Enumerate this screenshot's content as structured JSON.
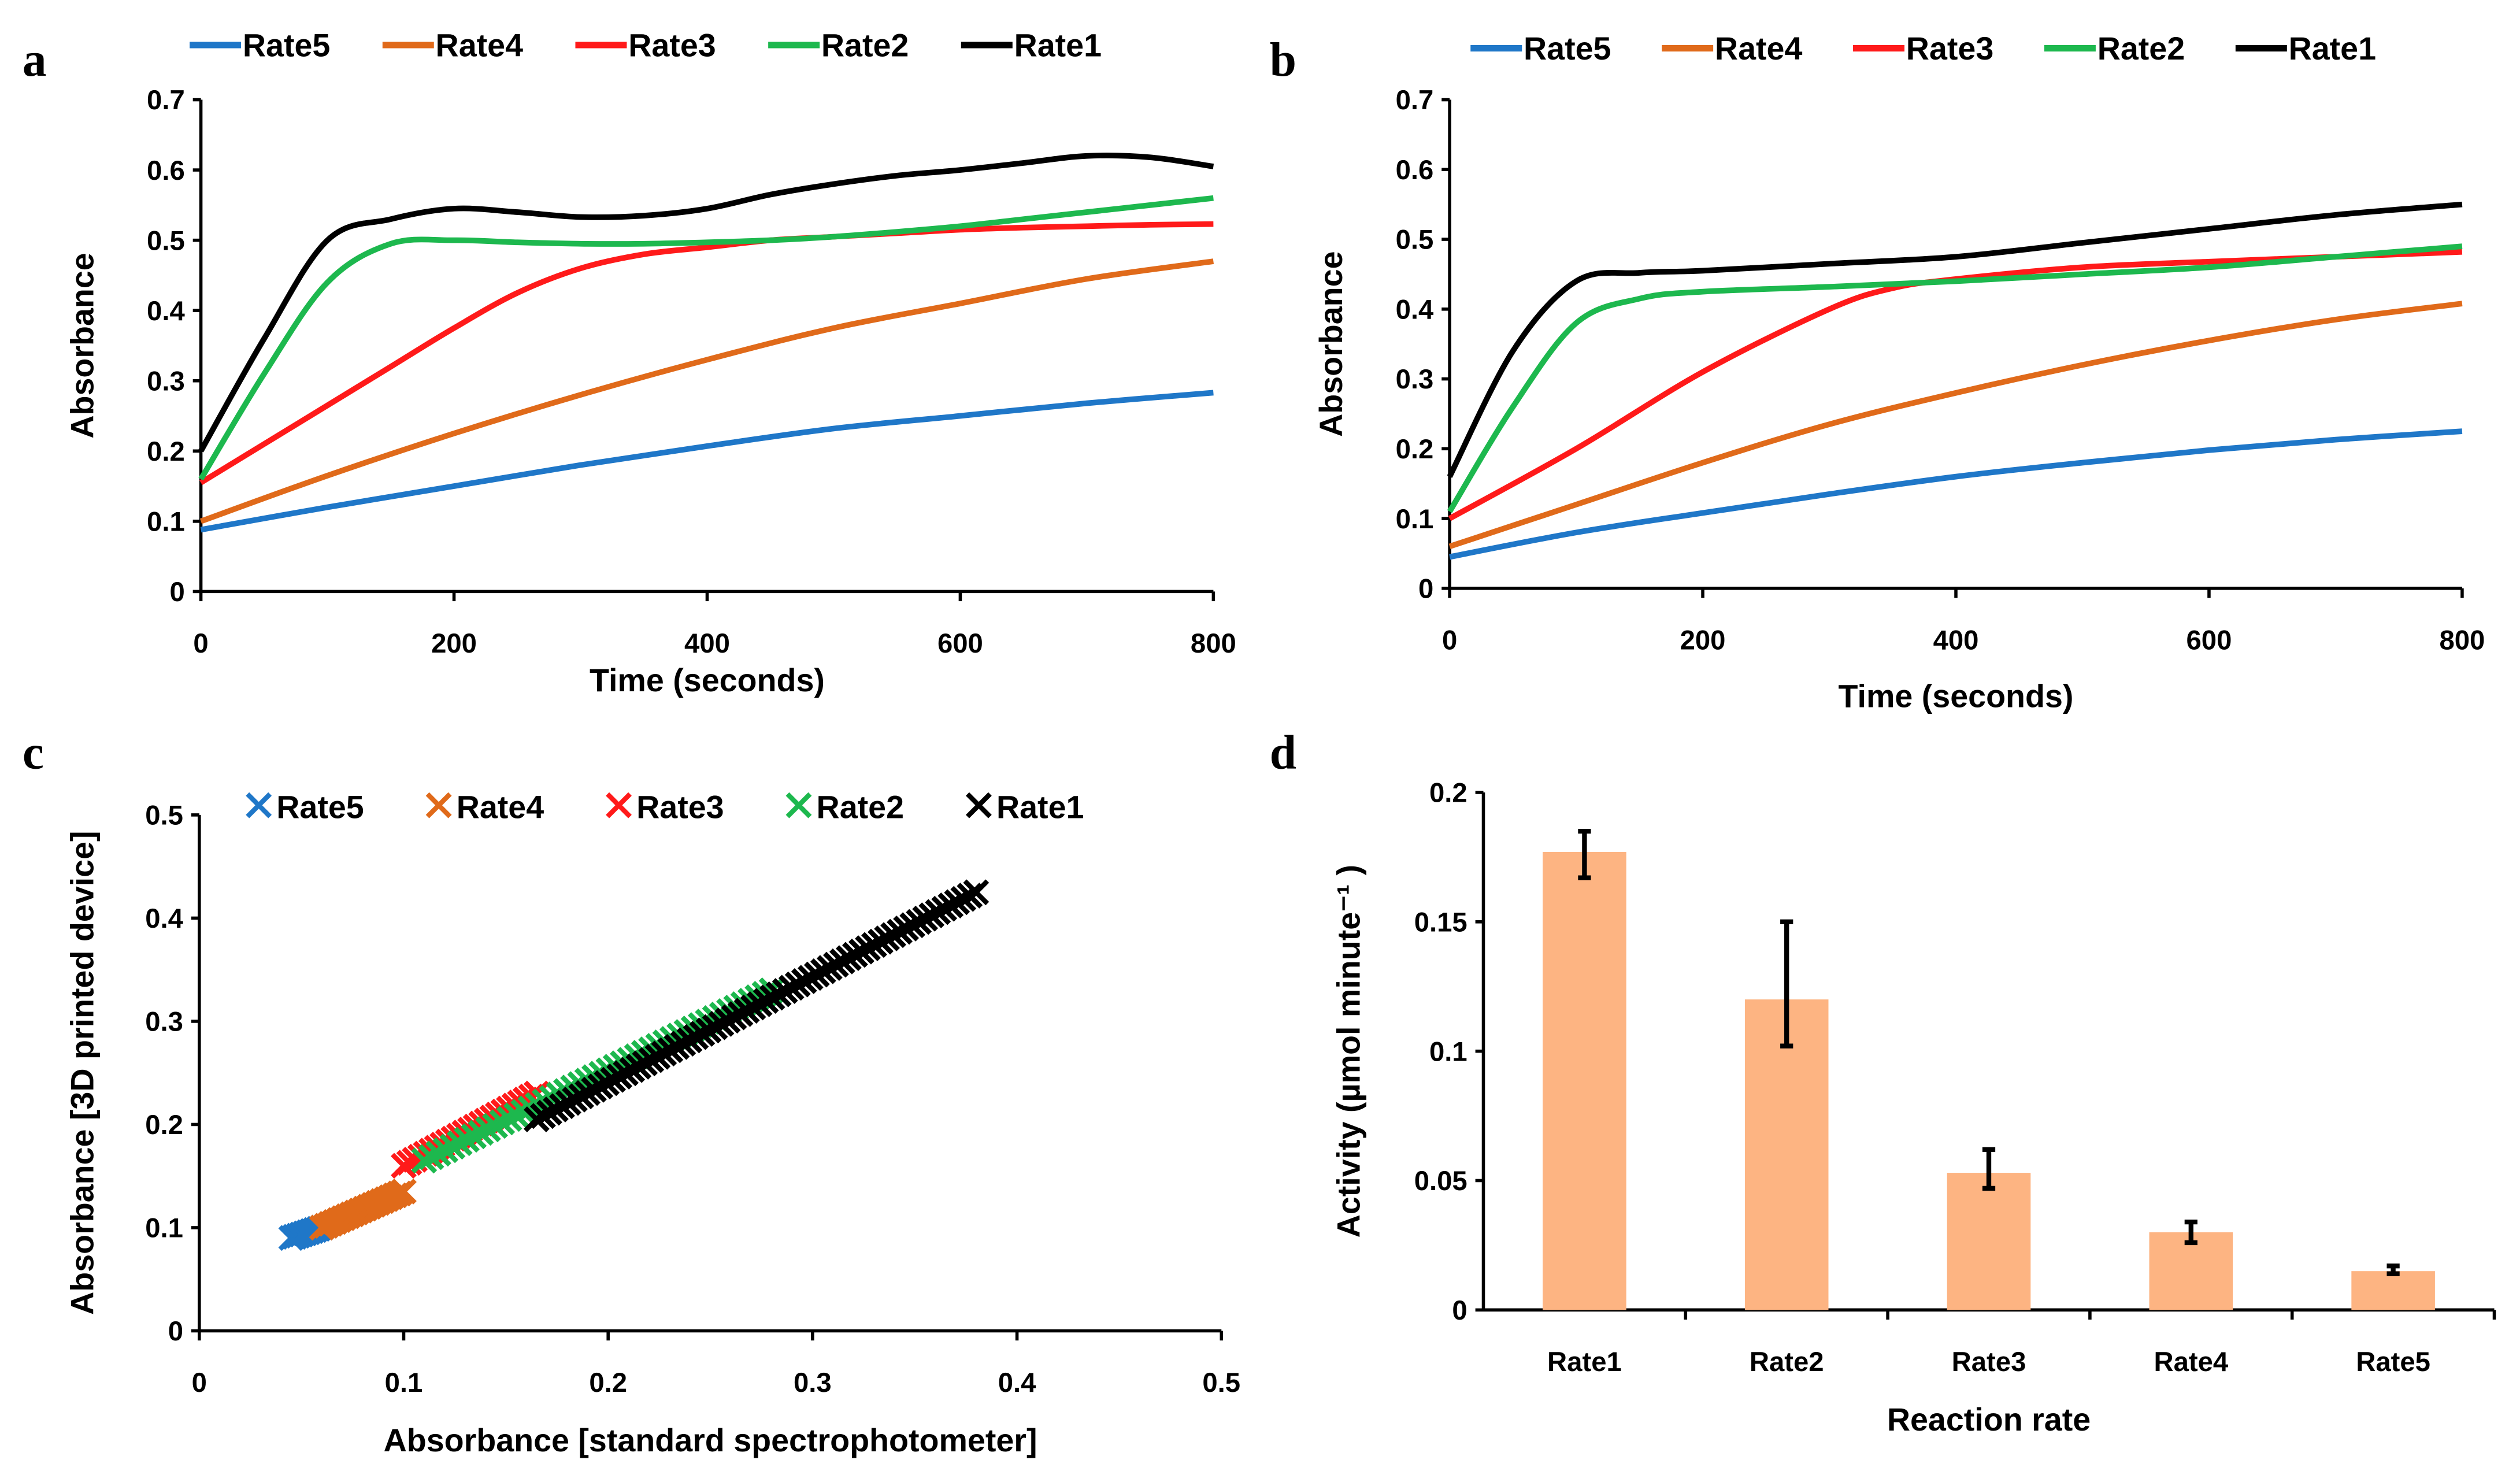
{
  "colors": {
    "Rate5": "#1f77c8",
    "Rate4": "#e06a1a",
    "Rate3": "#ff1a1a",
    "Rate2": "#1db84e",
    "Rate1": "#000000",
    "bar": "#fdb482"
  },
  "chart_data": [
    {
      "panel": "a",
      "type": "line",
      "xlabel": "Time (seconds)",
      "ylabel": "Absorbance",
      "xlim": [
        0,
        800
      ],
      "ylim": [
        0,
        0.7
      ],
      "xticks": [
        "0",
        "200",
        "400",
        "600",
        "800"
      ],
      "yticks": [
        "0",
        "0.1",
        "0.2",
        "0.3",
        "0.4",
        "0.5",
        "0.6",
        "0.7"
      ],
      "legend": [
        "Rate5",
        "Rate4",
        "Rate3",
        "Rate2",
        "Rate1"
      ],
      "legend_position": "top",
      "series": [
        {
          "name": "Rate5",
          "x": [
            0,
            100,
            200,
            300,
            400,
            500,
            600,
            700,
            800
          ],
          "y": [
            0.088,
            0.12,
            0.15,
            0.18,
            0.207,
            0.232,
            0.25,
            0.268,
            0.283
          ]
        },
        {
          "name": "Rate4",
          "x": [
            0,
            100,
            200,
            300,
            400,
            500,
            600,
            700,
            800
          ],
          "y": [
            0.1,
            0.165,
            0.225,
            0.28,
            0.33,
            0.375,
            0.41,
            0.445,
            0.47
          ]
        },
        {
          "name": "Rate3",
          "x": [
            0,
            50,
            100,
            150,
            200,
            250,
            300,
            350,
            400,
            450,
            500,
            550,
            600,
            650,
            700,
            750,
            800
          ],
          "y": [
            0.155,
            0.21,
            0.265,
            0.32,
            0.375,
            0.425,
            0.46,
            0.48,
            0.49,
            0.5,
            0.505,
            0.51,
            0.515,
            0.518,
            0.52,
            0.522,
            0.523
          ]
        },
        {
          "name": "Rate2",
          "x": [
            0,
            50,
            100,
            150,
            200,
            250,
            300,
            350,
            400,
            450,
            500,
            550,
            600,
            650,
            700,
            750,
            800
          ],
          "y": [
            0.16,
            0.31,
            0.44,
            0.495,
            0.5,
            0.497,
            0.495,
            0.495,
            0.497,
            0.5,
            0.505,
            0.512,
            0.52,
            0.53,
            0.54,
            0.55,
            0.56
          ]
        },
        {
          "name": "Rate1",
          "x": [
            0,
            50,
            100,
            150,
            200,
            250,
            300,
            350,
            400,
            450,
            500,
            550,
            600,
            650,
            700,
            750,
            800
          ],
          "y": [
            0.2,
            0.36,
            0.5,
            0.53,
            0.545,
            0.54,
            0.533,
            0.535,
            0.545,
            0.565,
            0.58,
            0.592,
            0.6,
            0.61,
            0.62,
            0.618,
            0.605
          ]
        }
      ]
    },
    {
      "panel": "b",
      "type": "line",
      "xlabel": "Time (seconds)",
      "ylabel": "Absorbance",
      "xlim": [
        0,
        800
      ],
      "ylim": [
        0,
        0.7
      ],
      "xticks": [
        "0",
        "200",
        "400",
        "600",
        "800"
      ],
      "yticks": [
        "0",
        "0.1",
        "0.2",
        "0.3",
        "0.4",
        "0.5",
        "0.6",
        "0.7"
      ],
      "legend": [
        "Rate5",
        "Rate4",
        "Rate3",
        "Rate2",
        "Rate1"
      ],
      "legend_position": "top",
      "series": [
        {
          "name": "Rate5",
          "x": [
            0,
            100,
            200,
            300,
            400,
            500,
            600,
            700,
            800
          ],
          "y": [
            0.045,
            0.08,
            0.108,
            0.135,
            0.16,
            0.18,
            0.198,
            0.213,
            0.225
          ]
        },
        {
          "name": "Rate4",
          "x": [
            0,
            100,
            200,
            300,
            400,
            500,
            600,
            700,
            800
          ],
          "y": [
            0.06,
            0.12,
            0.18,
            0.235,
            0.28,
            0.32,
            0.355,
            0.385,
            0.408
          ]
        },
        {
          "name": "Rate3",
          "x": [
            0,
            100,
            200,
            300,
            350,
            400,
            500,
            600,
            700,
            800
          ],
          "y": [
            0.1,
            0.2,
            0.31,
            0.4,
            0.43,
            0.443,
            0.46,
            0.468,
            0.475,
            0.482
          ]
        },
        {
          "name": "Rate2",
          "x": [
            0,
            50,
            100,
            150,
            200,
            300,
            400,
            500,
            600,
            700,
            800
          ],
          "y": [
            0.11,
            0.26,
            0.38,
            0.415,
            0.425,
            0.432,
            0.44,
            0.45,
            0.46,
            0.475,
            0.49
          ]
        },
        {
          "name": "Rate1",
          "x": [
            0,
            50,
            100,
            150,
            200,
            300,
            400,
            500,
            600,
            700,
            800
          ],
          "y": [
            0.16,
            0.34,
            0.44,
            0.452,
            0.455,
            0.465,
            0.475,
            0.495,
            0.515,
            0.535,
            0.55
          ]
        }
      ]
    },
    {
      "panel": "c",
      "type": "scatter",
      "xlabel": "Absorbance [standard spectrophotometer]",
      "ylabel": "Absorbance [3D printed device]",
      "xlim": [
        0,
        0.5
      ],
      "ylim": [
        0,
        0.5
      ],
      "xticks": [
        "0",
        "0.1",
        "0.2",
        "0.3",
        "0.4",
        "0.5"
      ],
      "yticks": [
        "0",
        "0.1",
        "0.2",
        "0.3",
        "0.4",
        "0.5"
      ],
      "legend": [
        "Rate5",
        "Rate4",
        "Rate3",
        "Rate2",
        "Rate1"
      ],
      "legend_position": "top",
      "series": [
        {
          "name": "Rate5",
          "x_range": [
            0.045,
            0.06
          ],
          "y_range": [
            0.09,
            0.1
          ],
          "n": 10
        },
        {
          "name": "Rate4",
          "x_range": [
            0.06,
            0.1
          ],
          "y_range": [
            0.1,
            0.135
          ],
          "n": 20
        },
        {
          "name": "Rate3",
          "x_range": [
            0.1,
            0.165
          ],
          "y_range": [
            0.16,
            0.23
          ],
          "n": 25
        },
        {
          "name": "Rate2",
          "x_range": [
            0.11,
            0.28
          ],
          "y_range": [
            0.165,
            0.33
          ],
          "n": 50
        },
        {
          "name": "Rate1",
          "x_range": [
            0.165,
            0.38
          ],
          "y_range": [
            0.205,
            0.425
          ],
          "n": 70
        }
      ]
    },
    {
      "panel": "d",
      "type": "bar",
      "xlabel": "Reaction rate",
      "ylabel": "Activity (µmol minute⁻¹ )",
      "ylim": [
        0,
        0.2
      ],
      "yticks": [
        "0",
        "0.05",
        "0.1",
        "0.15",
        "0.2"
      ],
      "categories": [
        "Rate1",
        "Rate2",
        "Rate3",
        "Rate4",
        "Rate5"
      ],
      "values": [
        0.177,
        0.12,
        0.053,
        0.03,
        0.015
      ],
      "error_low": [
        0.167,
        0.102,
        0.047,
        0.026,
        0.014
      ],
      "error_high": [
        0.185,
        0.15,
        0.062,
        0.034,
        0.017
      ]
    }
  ]
}
